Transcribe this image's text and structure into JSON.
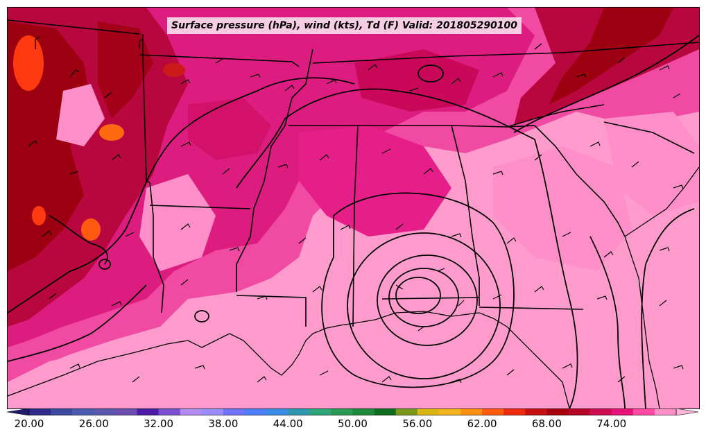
{
  "title": "Surface pressure (hPa), wind (kts), Td (F) Valid: 201805290100",
  "colorbar": {
    "tick_labels": [
      "20.00",
      "26.00",
      "32.00",
      "38.00",
      "44.00",
      "50.00",
      "56.00",
      "62.00",
      "68.00",
      "74.00"
    ],
    "colors": [
      "#2e2b8c",
      "#3c4aa0",
      "#4a5cb2",
      "#5a58ae",
      "#6b4db0",
      "#4e1aa8",
      "#7a4fd0",
      "#b08cf0",
      "#9a8cff",
      "#6f73ff",
      "#4f7fff",
      "#3a8ce6",
      "#2f98b0",
      "#2ea67a",
      "#2a9a55",
      "#1d8a3a",
      "#0f6e1d",
      "#7a9a17",
      "#dab612",
      "#f2b41f",
      "#ff8f0c",
      "#ff5a0a",
      "#ee2a0d",
      "#c80f0f",
      "#a8000f",
      "#b50628",
      "#cf0b52",
      "#e8117a",
      "#ff4aa5",
      "#ff8fc8"
    ]
  },
  "legend_colors": {
    "background": "#ff9ccd",
    "mid_magenta": "#ee2d96",
    "deep_magenta": "#d6116f",
    "crimson": "#b3003a",
    "dark_red": "#9c0010",
    "orange_red": "#ff3a10"
  }
}
